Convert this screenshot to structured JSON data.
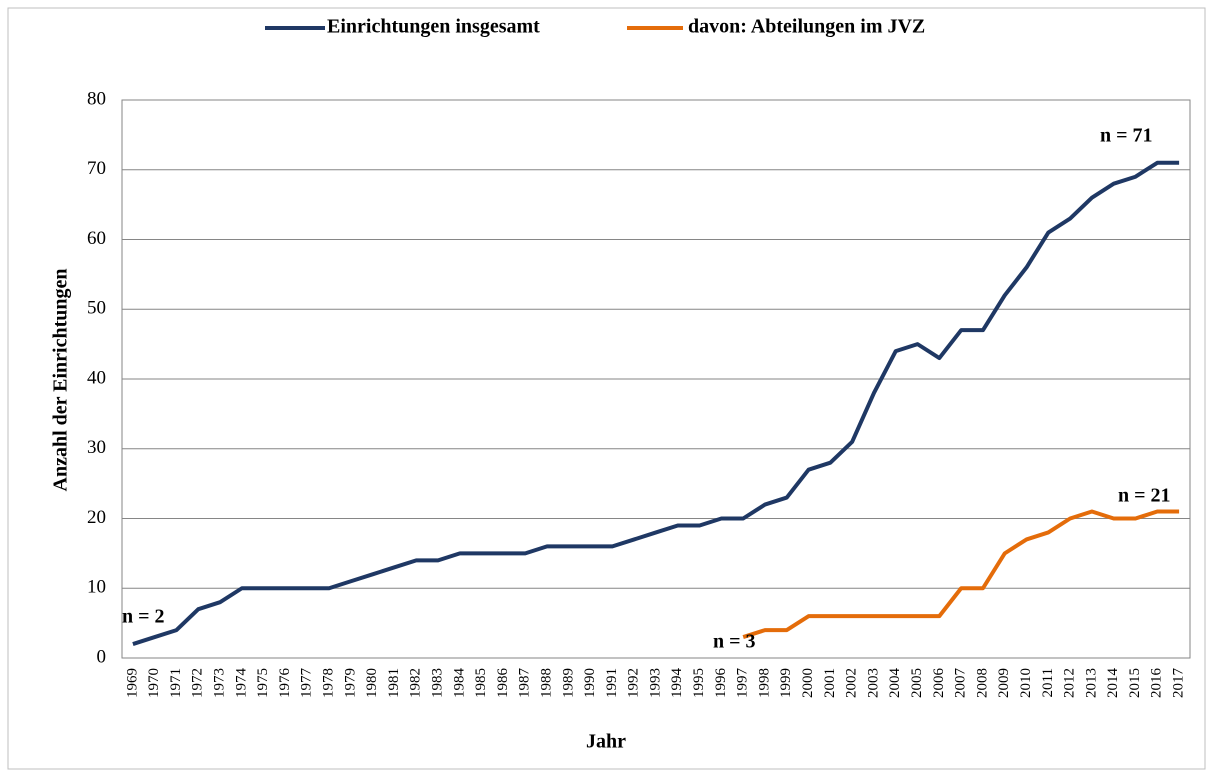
{
  "chart_data": {
    "type": "line",
    "y_label": "Anzahl der Einrichtungen",
    "x_label": "Jahr",
    "categories": [
      "1969",
      "1970",
      "1971",
      "1972",
      "1973",
      "1974",
      "1975",
      "1976",
      "1977",
      "1978",
      "1979",
      "1980",
      "1981",
      "1982",
      "1983",
      "1984",
      "1985",
      "1986",
      "1987",
      "1988",
      "1989",
      "1990",
      "1991",
      "1992",
      "1993",
      "1994",
      "1995",
      "1996",
      "1997",
      "1998",
      "1999",
      "2000",
      "2001",
      "2002",
      "2003",
      "2004",
      "2005",
      "2006",
      "2007",
      "2008",
      "2009",
      "2010",
      "2011",
      "2012",
      "2013",
      "2014",
      "2015",
      "2016",
      "2017"
    ],
    "series": [
      {
        "name": "Einrichtungen insgesamt",
        "color": "#1f3864",
        "values": [
          2,
          3,
          4,
          7,
          8,
          10,
          10,
          10,
          10,
          10,
          11,
          12,
          13,
          14,
          14,
          15,
          15,
          15,
          15,
          16,
          16,
          16,
          16,
          17,
          18,
          19,
          19,
          20,
          20,
          22,
          23,
          27,
          28,
          31,
          38,
          44,
          45,
          43,
          47,
          47,
          52,
          56,
          61,
          63,
          66,
          68,
          69,
          71,
          71
        ]
      },
      {
        "name": "davon: Abteilungen im JVZ",
        "color": "#e46c0a",
        "values": [
          null,
          null,
          null,
          null,
          null,
          null,
          null,
          null,
          null,
          null,
          null,
          null,
          null,
          null,
          null,
          null,
          null,
          null,
          null,
          null,
          null,
          null,
          null,
          null,
          null,
          null,
          null,
          null,
          3,
          4,
          4,
          6,
          6,
          6,
          6,
          6,
          6,
          6,
          10,
          10,
          15,
          17,
          18,
          20,
          21,
          20,
          20,
          21,
          21
        ]
      }
    ],
    "annotations": [
      "n = 2",
      "n = 3",
      "n = 71",
      "n = 21"
    ],
    "ylim": [
      0,
      80
    ],
    "yticks": [
      0,
      10,
      20,
      30,
      40,
      50,
      60,
      70,
      80
    ],
    "grid": true
  }
}
